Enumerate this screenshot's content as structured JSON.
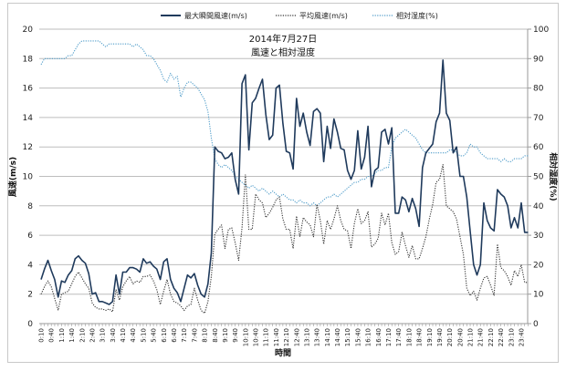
{
  "chart_data": {
    "type": "line",
    "title": "2014年7月27日",
    "subtitle": "風速と相対湿度",
    "xlabel": "時間",
    "ylabel": "風速(m/s)",
    "y2label": "相対湿度(%)",
    "ylim": [
      0,
      20
    ],
    "y2lim": [
      0,
      100
    ],
    "yticks": [
      "0",
      "2",
      "4",
      "6",
      "8",
      "10",
      "12",
      "14",
      "16",
      "18",
      "20"
    ],
    "y2ticks": [
      "0",
      "10",
      "20",
      "30",
      "40",
      "50",
      "60",
      "70",
      "80",
      "90",
      "100"
    ],
    "grid": true,
    "legend_position": "top",
    "x_tick_every": 3,
    "categories": [
      "0:10",
      "0:20",
      "0:30",
      "0:40",
      "0:50",
      "1:00",
      "1:10",
      "1:20",
      "1:30",
      "1:40",
      "1:50",
      "2:00",
      "2:10",
      "2:20",
      "2:30",
      "2:40",
      "2:50",
      "3:00",
      "3:10",
      "3:20",
      "3:30",
      "3:40",
      "3:50",
      "4:00",
      "4:10",
      "4:20",
      "4:30",
      "4:40",
      "4:50",
      "5:00",
      "5:10",
      "5:20",
      "5:30",
      "5:40",
      "5:50",
      "6:00",
      "6:10",
      "6:20",
      "6:30",
      "6:40",
      "6:50",
      "7:00",
      "7:10",
      "7:20",
      "7:30",
      "7:40",
      "7:50",
      "8:00",
      "8:10",
      "8:20",
      "8:30",
      "8:40",
      "8:50",
      "9:00",
      "9:10",
      "9:20",
      "9:30",
      "9:40",
      "9:50",
      "10:00",
      "10:10",
      "10:20",
      "10:30",
      "10:40",
      "10:50",
      "11:00",
      "11:10",
      "11:20",
      "11:30",
      "11:40",
      "11:50",
      "12:00",
      "12:10",
      "12:20",
      "12:30",
      "12:40",
      "12:50",
      "13:00",
      "13:10",
      "13:20",
      "13:30",
      "13:40",
      "13:50",
      "14:00",
      "14:10",
      "14:20",
      "14:30",
      "14:40",
      "14:50",
      "15:00",
      "15:10",
      "15:20",
      "15:30",
      "15:40",
      "15:50",
      "16:00",
      "16:10",
      "16:20",
      "16:30",
      "16:40",
      "16:50",
      "17:00",
      "17:10",
      "17:20",
      "17:30",
      "17:40",
      "17:50",
      "18:00",
      "18:10",
      "18:20",
      "18:30",
      "18:40",
      "18:50",
      "19:00",
      "19:10",
      "19:20",
      "19:30",
      "19:40",
      "19:50",
      "20:00",
      "20:10",
      "20:20",
      "20:30",
      "20:40",
      "20:50",
      "21:00",
      "21:10",
      "21:20",
      "21:30",
      "21:40",
      "21:50",
      "22:00",
      "22:10",
      "22:20",
      "22:30",
      "22:40",
      "22:50",
      "23:00",
      "23:10",
      "23:20",
      "23:30",
      "23:40",
      "23:50",
      "24:00"
    ],
    "series": [
      {
        "name": "最大瞬間風速(m/s)",
        "axis": "left",
        "color": "#1f3a5c",
        "style": "solid",
        "values": [
          3.0,
          3.7,
          4.3,
          3.6,
          3.0,
          1.8,
          2.9,
          2.8,
          3.3,
          3.6,
          4.4,
          4.6,
          4.3,
          4.1,
          3.4,
          2.0,
          2.1,
          1.5,
          1.5,
          1.4,
          1.3,
          1.5,
          3.3,
          2.0,
          3.5,
          3.5,
          3.8,
          3.8,
          3.7,
          3.5,
          4.4,
          4.1,
          4.2,
          3.9,
          3.7,
          3.0,
          4.2,
          4.4,
          3.0,
          2.4,
          2.1,
          1.5,
          2.4,
          3.3,
          3.1,
          3.4,
          2.6,
          2.0,
          1.8,
          2.7,
          4.8,
          12.0,
          11.7,
          11.6,
          11.2,
          11.3,
          11.6,
          9.8,
          8.8,
          16.3,
          16.9,
          11.8,
          15.0,
          15.3,
          16.0,
          16.6,
          14.2,
          12.5,
          12.8,
          16.0,
          16.2,
          13.6,
          11.7,
          11.6,
          10.5,
          15.3,
          13.4,
          14.3,
          13.0,
          12.1,
          14.4,
          14.6,
          14.3,
          11.0,
          13.4,
          11.9,
          13.9,
          13.0,
          11.9,
          11.8,
          10.4,
          9.8,
          10.4,
          13.1,
          10.5,
          11.3,
          13.4,
          9.3,
          10.4,
          10.6,
          13.0,
          13.2,
          12.2,
          13.3,
          7.5,
          7.5,
          8.6,
          8.4,
          7.6,
          8.5,
          7.8,
          6.6,
          10.6,
          11.6,
          11.9,
          12.2,
          13.7,
          14.3,
          17.9,
          14.3,
          13.8,
          11.6,
          12.0,
          10.0,
          10.0,
          8.6,
          6.3,
          4.0,
          3.3,
          4.0,
          8.2,
          7.0,
          6.5,
          6.3,
          9.1,
          8.8,
          8.6,
          8.0,
          6.5,
          7.2,
          6.5,
          8.2,
          6.2,
          6.2
        ]
      },
      {
        "name": "平均風速(m/s)",
        "axis": "left",
        "color": "#333333",
        "style": "dotted",
        "values": [
          2.0,
          2.5,
          2.9,
          2.5,
          1.7,
          0.9,
          2.0,
          2.1,
          2.2,
          2.7,
          3.2,
          3.5,
          3.1,
          2.7,
          2.4,
          1.4,
          1.1,
          1.0,
          1.0,
          0.9,
          1.0,
          0.8,
          2.3,
          1.6,
          2.5,
          2.9,
          3.2,
          2.7,
          2.9,
          2.8,
          3.2,
          3.2,
          3.3,
          2.9,
          2.3,
          1.3,
          2.2,
          3.0,
          2.0,
          1.5,
          1.4,
          1.2,
          0.9,
          1.2,
          1.3,
          2.4,
          1.6,
          0.9,
          0.7,
          1.5,
          3.2,
          6.1,
          6.4,
          6.7,
          5.1,
          6.4,
          6.5,
          5.5,
          4.3,
          6.5,
          10.1,
          6.4,
          6.4,
          8.8,
          8.4,
          8.2,
          7.2,
          7.5,
          7.9,
          8.4,
          8.6,
          7.1,
          6.4,
          6.4,
          5.1,
          7.3,
          5.9,
          7.2,
          6.9,
          6.7,
          5.9,
          8.1,
          7.0,
          5.4,
          7.0,
          6.4,
          7.1,
          8.0,
          7.0,
          6.4,
          6.3,
          5.1,
          6.8,
          7.8,
          6.8,
          7.0,
          7.6,
          5.2,
          5.4,
          5.8,
          7.5,
          6.7,
          7.5,
          5.5,
          4.7,
          4.9,
          6.2,
          5.3,
          4.5,
          5.3,
          4.4,
          4.4,
          5.1,
          5.9,
          7.1,
          8.1,
          9.6,
          9.8,
          10.8,
          8.0,
          7.8,
          7.6,
          7.1,
          5.9,
          4.7,
          2.4,
          1.9,
          2.2,
          1.6,
          2.4,
          3.1,
          3.2,
          2.6,
          1.9,
          5.4,
          3.8,
          3.6,
          3.2,
          2.6,
          3.6,
          3.2,
          4.0,
          2.8,
          2.8
        ]
      },
      {
        "name": "相対湿度(%)",
        "axis": "right",
        "color": "#4f9cc9",
        "style": "dotted",
        "values": [
          88,
          90,
          90,
          90,
          90,
          90,
          90,
          90,
          91,
          91,
          93,
          95,
          96,
          96,
          96,
          96,
          96,
          96,
          95,
          94,
          95,
          95,
          95,
          95,
          95,
          95,
          95,
          94,
          95,
          94,
          93,
          91,
          91,
          90,
          88,
          86,
          83,
          82,
          85,
          83,
          84,
          77,
          80,
          82,
          82,
          81,
          80,
          78,
          76,
          72,
          63,
          56,
          54,
          53,
          54,
          53,
          52,
          50,
          49,
          48,
          47,
          46,
          47,
          46,
          45,
          46,
          45,
          44,
          45,
          44,
          43,
          44,
          43,
          42,
          42,
          41,
          42,
          41,
          41,
          40,
          41,
          40,
          41,
          42,
          43,
          43,
          44,
          43,
          44,
          45,
          46,
          47,
          48,
          48,
          49,
          49,
          50,
          50,
          51,
          52,
          52,
          53,
          53,
          60,
          63,
          64,
          65,
          66,
          65,
          64,
          63,
          61,
          59,
          58,
          58,
          58,
          58,
          58,
          58,
          58,
          59,
          59,
          58,
          57,
          57,
          58,
          61,
          60,
          60,
          58,
          57,
          56,
          56,
          56,
          56,
          55,
          56,
          55,
          55,
          56,
          56,
          56,
          57,
          57
        ]
      }
    ]
  }
}
